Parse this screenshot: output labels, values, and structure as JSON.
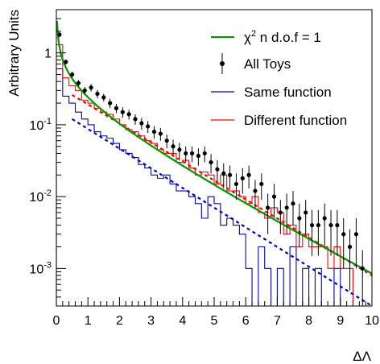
{
  "chart_data": {
    "type": "line",
    "title": "",
    "xlabel": "ΔΛ",
    "ylabel": "Arbitrary Units",
    "xlim": [
      0,
      10
    ],
    "ylim": [
      0.0003,
      4
    ],
    "yscale": "log",
    "x_ticks": [
      "0",
      "1",
      "2",
      "3",
      "4",
      "5",
      "6",
      "7",
      "8",
      "9",
      "10"
    ],
    "y_ticks": [
      {
        "value": 0.001,
        "base": "10",
        "exp": "-3"
      },
      {
        "value": 0.01,
        "base": "10",
        "exp": "-2"
      },
      {
        "value": 0.1,
        "base": "10",
        "exp": "-1"
      },
      {
        "value": 1,
        "base": "1",
        "exp": ""
      }
    ],
    "grid": false,
    "legend_position": "top-right",
    "legend": {
      "chi2": {
        "prefix": "χ",
        "sup": "2",
        "suffix": " n d.o.f = 1"
      },
      "toys": "All Toys",
      "same": "Same function",
      "diff": "Different function"
    },
    "colors": {
      "chi2": "#009900",
      "toys": "#000000",
      "same": "#0000cc",
      "diff": "#ff0000"
    },
    "series": [
      {
        "name": "All Toys",
        "kind": "points_with_errors",
        "x": [
          0.1,
          0.3,
          0.5,
          0.7,
          0.9,
          1.1,
          1.3,
          1.5,
          1.7,
          1.9,
          2.1,
          2.3,
          2.5,
          2.7,
          2.9,
          3.1,
          3.3,
          3.5,
          3.7,
          3.9,
          4.1,
          4.3,
          4.5,
          4.7,
          4.9,
          5.1,
          5.3,
          5.5,
          5.7,
          5.9,
          6.1,
          6.3,
          6.5,
          6.7,
          6.9,
          7.1,
          7.3,
          7.5,
          7.7,
          7.9,
          8.1,
          8.3,
          8.5,
          8.7,
          8.9,
          9.1,
          9.3,
          9.5,
          9.7
        ],
        "y": [
          1.8,
          0.75,
          0.5,
          0.38,
          0.3,
          0.33,
          0.27,
          0.24,
          0.2,
          0.17,
          0.15,
          0.14,
          0.12,
          0.105,
          0.095,
          0.08,
          0.075,
          0.06,
          0.05,
          0.045,
          0.04,
          0.04,
          0.037,
          0.04,
          0.03,
          0.024,
          0.021,
          0.02,
          0.015,
          0.018,
          0.02,
          0.012,
          0.015,
          0.007,
          0.01,
          0.006,
          0.007,
          0.008,
          0.005,
          0.006,
          0.004,
          0.004,
          0.005,
          0.004,
          0.004,
          0.003,
          0.002,
          0.003,
          0.001
        ],
        "yerr": [
          0.15,
          0.06,
          0.05,
          0.04,
          0.035,
          0.04,
          0.035,
          0.03,
          0.03,
          0.025,
          0.025,
          0.022,
          0.02,
          0.02,
          0.018,
          0.016,
          0.015,
          0.013,
          0.012,
          0.011,
          0.01,
          0.01,
          0.01,
          0.01,
          0.009,
          0.008,
          0.008,
          0.007,
          0.006,
          0.007,
          0.007,
          0.005,
          0.006,
          0.004,
          0.005,
          0.003,
          0.004,
          0.004,
          0.003,
          0.003,
          0.0025,
          0.0025,
          0.003,
          0.0025,
          0.0025,
          0.002,
          0.0015,
          0.002,
          0.0008
        ]
      },
      {
        "name": "Same function",
        "kind": "histogram",
        "edges": [
          0,
          0.2,
          0.4,
          0.6,
          0.8,
          1.0,
          1.2,
          1.4,
          1.6,
          1.8,
          2.0,
          2.2,
          2.4,
          2.6,
          2.8,
          3.0,
          3.2,
          3.4,
          3.6,
          3.8,
          4.0,
          4.2,
          4.4,
          4.6,
          4.8,
          5.0,
          5.2,
          5.4,
          5.6,
          5.8,
          6.0,
          6.2,
          6.4,
          6.6,
          6.8,
          7.0,
          7.2,
          7.4,
          7.6,
          7.8,
          8.0,
          8.2,
          8.4,
          8.6,
          8.8,
          9.0,
          9.2,
          9.4,
          9.6,
          9.8,
          10.0
        ],
        "y": [
          0.6,
          0.25,
          0.2,
          0.15,
          0.12,
          0.1,
          0.08,
          0.07,
          0.065,
          0.055,
          0.045,
          0.04,
          0.035,
          0.028,
          0.025,
          0.02,
          0.018,
          0.02,
          0.015,
          0.012,
          0.012,
          0.01,
          0.008,
          0.005,
          0.01,
          0.008,
          0.004,
          0.005,
          0.004,
          0.003,
          0.001,
          0.0002,
          0.002,
          0.001,
          0.0002,
          0.001,
          0.0002,
          0.002,
          0.0002,
          0.001,
          0.0002,
          0.001,
          0.0002,
          0.0002,
          0.001,
          0.0002,
          0.0002,
          0.0002,
          0.0002,
          0.0002
        ]
      },
      {
        "name": "Different function",
        "kind": "histogram",
        "edges": [
          0,
          0.2,
          0.4,
          0.6,
          0.8,
          1.0,
          1.2,
          1.4,
          1.6,
          1.8,
          2.0,
          2.2,
          2.4,
          2.6,
          2.8,
          3.0,
          3.2,
          3.4,
          3.6,
          3.8,
          4.0,
          4.2,
          4.4,
          4.6,
          4.8,
          5.0,
          5.2,
          5.4,
          5.6,
          5.8,
          6.0,
          6.2,
          6.4,
          6.6,
          6.8,
          7.0,
          7.2,
          7.4,
          7.6,
          7.8,
          8.0,
          8.2,
          8.4,
          8.6,
          8.8,
          9.0,
          9.2,
          9.4,
          9.6,
          9.8,
          10.0
        ],
        "y": [
          1.3,
          0.45,
          0.35,
          0.3,
          0.22,
          0.2,
          0.17,
          0.15,
          0.14,
          0.12,
          0.1,
          0.085,
          0.08,
          0.07,
          0.06,
          0.055,
          0.045,
          0.04,
          0.04,
          0.03,
          0.032,
          0.025,
          0.02,
          0.022,
          0.02,
          0.015,
          0.02,
          0.012,
          0.012,
          0.01,
          0.008,
          0.01,
          0.006,
          0.005,
          0.007,
          0.006,
          0.003,
          0.004,
          0.002,
          0.003,
          0.002,
          0.002,
          0.002,
          0.001,
          0.002,
          0.001,
          0.001,
          0.0002,
          0.0002,
          0.0002
        ]
      },
      {
        "name": "χ² n d.o.f = 1",
        "kind": "curve",
        "function": "chi2_dof1_density"
      },
      {
        "name": "Same function fit",
        "kind": "dashed_curve",
        "function": "exponential",
        "points": [
          [
            0.5,
            0.12
          ],
          [
            10.0,
            0.0003
          ]
        ]
      },
      {
        "name": "Different function fit",
        "kind": "dashed_curve",
        "function": "exponential",
        "points": [
          [
            0.5,
            0.26
          ],
          [
            10.0,
            0.0008
          ]
        ]
      }
    ]
  }
}
